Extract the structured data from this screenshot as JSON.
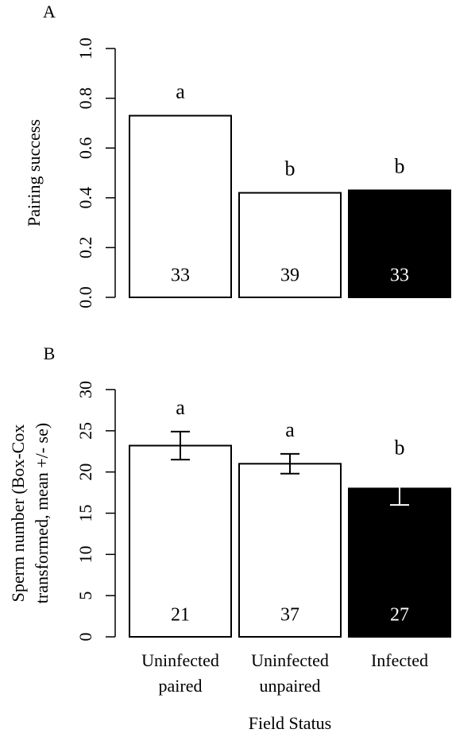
{
  "chart_data": [
    {
      "type": "bar",
      "panel_label": "A",
      "ylabel": [
        "Pairing success"
      ],
      "values": [
        0.73,
        0.42,
        0.43
      ],
      "colors": [
        "#ffffff",
        "#ffffff",
        "#000000"
      ],
      "group_labels": [
        "a",
        "b",
        "b"
      ],
      "sample_sizes": [
        33,
        39,
        33
      ],
      "ylim": [
        0,
        1
      ],
      "yticks": [
        {
          "value": 0,
          "label": "0.0"
        },
        0.2,
        0.4,
        0.6,
        0.8,
        {
          "value": 1,
          "label": "1.0"
        }
      ]
    },
    {
      "type": "bar",
      "panel_label": "B",
      "ylabel": [
        "Sperm number (Box-Cox",
        "transformed, mean +/- se)"
      ],
      "categories": [
        "Uninfected paired",
        "Uninfected unpaired",
        "Infected"
      ],
      "xlabel": "Field Status",
      "values": [
        23.2,
        21.0,
        18.0
      ],
      "errors": [
        1.7,
        1.2,
        2.0
      ],
      "colors": [
        "#ffffff",
        "#ffffff",
        "#000000"
      ],
      "group_labels": [
        "a",
        "a",
        "b"
      ],
      "sample_sizes": [
        21,
        37,
        27
      ],
      "ylim": [
        0,
        30
      ],
      "yticks": [
        0,
        5,
        10,
        15,
        20,
        25,
        30
      ]
    }
  ]
}
